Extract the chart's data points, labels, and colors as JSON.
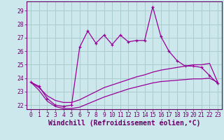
{
  "xlabel": "Windchill (Refroidissement éolien,°C)",
  "xlim": [
    -0.5,
    23.5
  ],
  "ylim": [
    21.7,
    29.7
  ],
  "yticks": [
    22,
    23,
    24,
    25,
    26,
    27,
    28,
    29
  ],
  "xticks": [
    0,
    1,
    2,
    3,
    4,
    5,
    6,
    7,
    8,
    9,
    10,
    11,
    12,
    13,
    14,
    15,
    16,
    17,
    18,
    19,
    20,
    21,
    22,
    23
  ],
  "background_color": "#cce8ec",
  "grid_color": "#aacccc",
  "line_color": "#990099",
  "main_line_x": [
    0,
    1,
    2,
    3,
    4,
    5,
    6,
    7,
    8,
    9,
    10,
    11,
    12,
    13,
    14,
    15,
    16,
    17,
    18,
    19,
    20,
    21,
    22,
    23
  ],
  "main_line_y": [
    23.7,
    23.4,
    22.5,
    22.0,
    21.9,
    22.0,
    26.3,
    27.5,
    26.6,
    27.2,
    26.5,
    27.2,
    26.7,
    26.8,
    26.8,
    29.3,
    27.1,
    26.0,
    25.3,
    24.9,
    24.9,
    24.8,
    24.2,
    23.6
  ],
  "line2_x": [
    0,
    1,
    2,
    3,
    4,
    5,
    6,
    7,
    8,
    9,
    10,
    11,
    12,
    13,
    14,
    15,
    16,
    17,
    18,
    19,
    20,
    21,
    22,
    23
  ],
  "line2_y": [
    23.7,
    23.3,
    22.7,
    22.35,
    22.2,
    22.2,
    22.4,
    22.7,
    23.0,
    23.3,
    23.5,
    23.7,
    23.9,
    24.1,
    24.25,
    24.45,
    24.6,
    24.7,
    24.8,
    24.9,
    25.0,
    25.0,
    25.1,
    23.7
  ],
  "line3_x": [
    0,
    1,
    2,
    3,
    4,
    5,
    6,
    7,
    8,
    9,
    10,
    11,
    12,
    13,
    14,
    15,
    16,
    17,
    18,
    19,
    20,
    21,
    22,
    23
  ],
  "line3_y": [
    23.7,
    23.1,
    22.3,
    21.9,
    21.75,
    21.75,
    21.85,
    22.1,
    22.35,
    22.6,
    22.8,
    23.0,
    23.2,
    23.35,
    23.5,
    23.65,
    23.75,
    23.8,
    23.85,
    23.9,
    23.95,
    23.95,
    24.0,
    23.7
  ],
  "tick_fontsize": 5.8,
  "xlabel_fontsize": 7.0,
  "axis_color": "#660066"
}
